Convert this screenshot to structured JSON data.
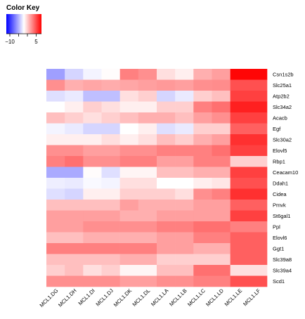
{
  "chart_data": {
    "type": "heatmap",
    "color_key": {
      "title": "Color Key",
      "ticks": [
        -10,
        5
      ],
      "tick_labels": [
        "−10",
        "5"
      ],
      "range": [
        -12,
        8
      ],
      "low_color": "#0000ff",
      "mid_color": "#ffffff",
      "high_color": "#ff0000"
    },
    "columns": [
      "MCL1.DG",
      "MCL1.DH",
      "MCL1.DI",
      "MCL1.DJ",
      "MCL1.DK",
      "MCL1.DL",
      "MCL1.LA",
      "MCL1.LB",
      "MCL1.LC",
      "MCL1.LD",
      "MCL1.LE",
      "MCL1.LF"
    ],
    "rows": [
      "Csn1s2b",
      "Slc25a1",
      "Atp2b2",
      "Slc34a2",
      "Acacb",
      "Egf",
      "Slc30a2",
      "Elovl5",
      "Rbp1",
      "Ceacam10",
      "Ddah1",
      "Cidea",
      "Pmvk",
      "St6gal1",
      "Ppl",
      "Elovl6",
      "Ggt1",
      "Slc39a8",
      "Slc39a4",
      "Scd1"
    ],
    "values": [
      [
        -4.5,
        -2.0,
        -0.5,
        0.1,
        4.0,
        3.5,
        1.0,
        0.5,
        2.5,
        3.0,
        7.8,
        7.8
      ],
      [
        3.5,
        2.5,
        2.8,
        2.6,
        2.8,
        3.0,
        3.2,
        3.0,
        3.5,
        3.6,
        5.5,
        5.5
      ],
      [
        -1.5,
        -1.0,
        -3.0,
        -3.0,
        1.0,
        1.5,
        -2.0,
        -1.0,
        1.5,
        2.0,
        6.0,
        6.0
      ],
      [
        0.0,
        0.5,
        1.5,
        1.0,
        0.5,
        0.5,
        1.5,
        1.5,
        4.0,
        4.5,
        7.0,
        7.0
      ],
      [
        2.0,
        1.5,
        1.0,
        1.5,
        2.0,
        2.5,
        2.5,
        2.0,
        3.0,
        3.5,
        6.0,
        6.0
      ],
      [
        -0.5,
        -1.0,
        -2.0,
        -2.0,
        0.0,
        0.5,
        -1.5,
        -1.0,
        1.5,
        1.5,
        5.0,
        5.0
      ],
      [
        0.5,
        0.5,
        0.5,
        1.0,
        0.5,
        1.0,
        2.0,
        1.5,
        2.5,
        3.0,
        6.5,
        6.5
      ],
      [
        3.5,
        3.5,
        3.0,
        3.0,
        3.5,
        3.5,
        4.0,
        4.0,
        4.0,
        4.5,
        6.0,
        6.0
      ],
      [
        4.0,
        4.5,
        3.5,
        3.5,
        4.0,
        4.0,
        3.0,
        3.0,
        4.0,
        4.0,
        1.5,
        1.5
      ],
      [
        -4.0,
        -4.0,
        0.1,
        -1.5,
        0.3,
        0.3,
        2.0,
        2.0,
        2.5,
        2.5,
        6.0,
        6.0
      ],
      [
        -0.8,
        -1.0,
        -0.3,
        -0.5,
        1.0,
        1.0,
        0.0,
        0.0,
        0.5,
        0.8,
        5.5,
        5.5
      ],
      [
        -1.5,
        -2.0,
        0.5,
        0.5,
        1.5,
        1.5,
        1.5,
        1.0,
        3.5,
        4.0,
        6.5,
        6.5
      ],
      [
        2.0,
        2.0,
        2.0,
        2.0,
        3.0,
        2.5,
        2.5,
        2.5,
        3.0,
        3.0,
        5.0,
        5.0
      ],
      [
        3.0,
        3.0,
        3.0,
        3.0,
        2.5,
        2.5,
        3.0,
        3.0,
        3.0,
        3.0,
        6.0,
        6.0
      ],
      [
        3.0,
        3.0,
        3.5,
        3.5,
        3.5,
        3.5,
        4.0,
        4.0,
        4.5,
        4.5,
        4.0,
        4.0
      ],
      [
        2.0,
        2.0,
        2.5,
        2.5,
        2.5,
        2.5,
        3.0,
        3.0,
        4.0,
        4.0,
        5.0,
        5.0
      ],
      [
        4.0,
        4.0,
        4.0,
        4.0,
        4.0,
        4.0,
        3.0,
        3.0,
        2.5,
        2.5,
        5.0,
        5.0
      ],
      [
        2.0,
        2.0,
        2.0,
        2.0,
        2.5,
        2.5,
        1.5,
        1.5,
        1.5,
        1.5,
        5.0,
        5.0
      ],
      [
        1.5,
        2.0,
        1.0,
        1.5,
        0.3,
        0.3,
        2.0,
        2.0,
        4.5,
        4.5,
        1.0,
        1.0
      ],
      [
        3.5,
        3.5,
        3.5,
        3.5,
        3.0,
        3.0,
        3.5,
        3.5,
        4.0,
        4.0,
        5.5,
        5.5
      ]
    ]
  }
}
